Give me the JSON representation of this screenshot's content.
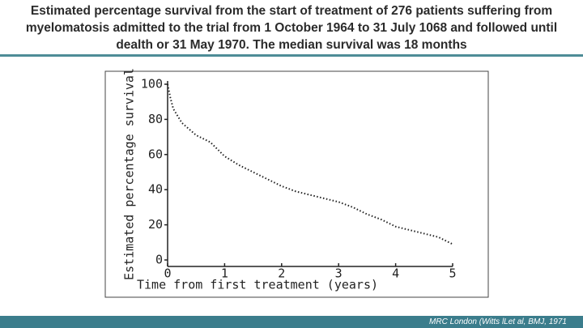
{
  "chart_data": {
    "type": "line",
    "title": "Estimated percentage survival from the start of treatment of 276 patients suffering from myelomatosis admitted to the trial from 1 October 1964 to 31 July 1068 and followed until dealth or 31 May 1970. The median survival was 18 months",
    "x_label": "Time from first treatment (years)",
    "y_label": "Estimated percentage survival",
    "x": [
      0,
      0.05,
      0.1,
      0.25,
      0.5,
      0.75,
      1,
      1.25,
      1.5,
      1.75,
      2,
      2.25,
      2.5,
      2.75,
      3,
      3.25,
      3.5,
      3.75,
      4,
      4.25,
      4.5,
      4.75,
      5
    ],
    "values": [
      100,
      92,
      86,
      78,
      71,
      67,
      59,
      54,
      50,
      46,
      42,
      39,
      37,
      35,
      33,
      30,
      26,
      23,
      19,
      17,
      15,
      13,
      9
    ],
    "color": "#222222",
    "xlim": [
      0,
      5
    ],
    "xticks": [
      0,
      1,
      2,
      3,
      4,
      5
    ],
    "ylim": [
      0,
      100
    ],
    "yticks": [
      0,
      20,
      40,
      60,
      80,
      100
    ],
    "source": "MRC London (Witts lLet al, BMJ, 1971"
  }
}
